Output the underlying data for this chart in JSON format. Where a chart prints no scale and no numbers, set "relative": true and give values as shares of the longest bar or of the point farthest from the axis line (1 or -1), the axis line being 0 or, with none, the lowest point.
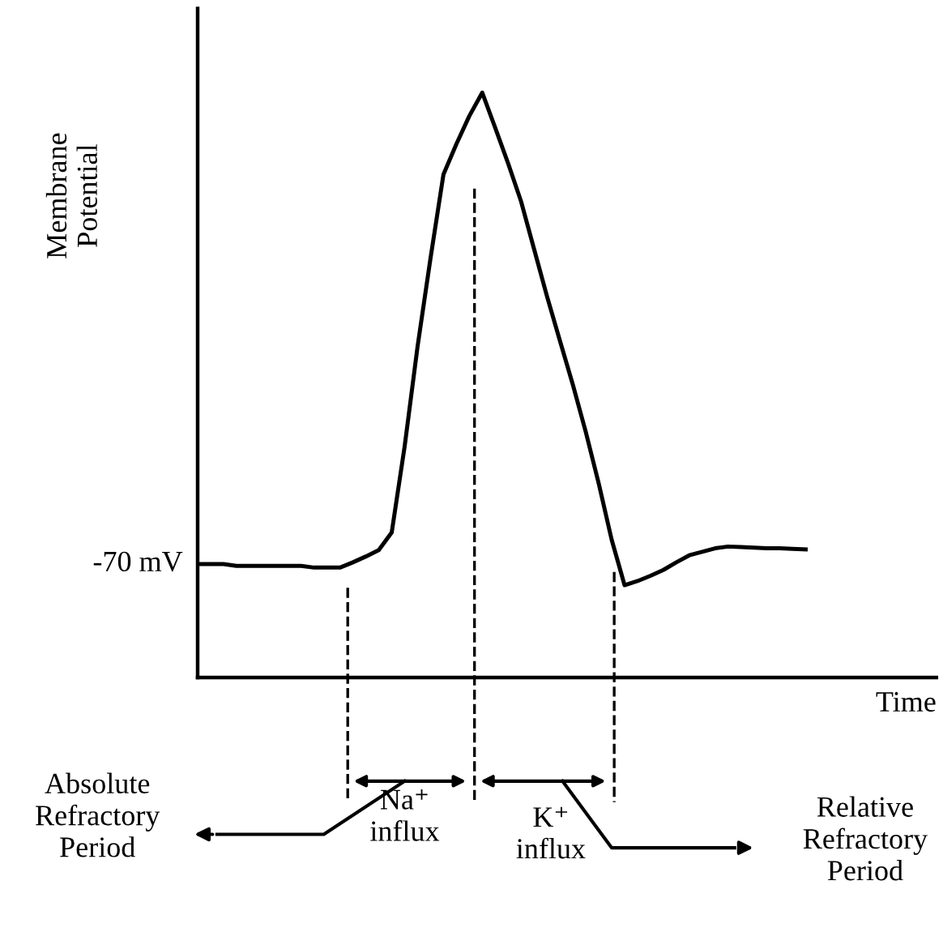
{
  "chart_data": {
    "type": "line",
    "relative": true,
    "xlabel": "Time",
    "ylabel": "Membrane\nPotential",
    "categories": [
      null,
      null,
      null,
      null,
      null,
      null,
      null,
      null,
      null,
      null,
      null,
      null,
      null,
      null,
      null,
      null,
      null,
      null,
      null,
      null,
      null,
      null,
      null,
      null,
      null,
      null,
      null,
      null,
      null,
      null,
      null,
      null,
      null,
      null,
      null,
      null,
      null,
      null,
      null,
      null,
      null,
      null,
      null,
      null,
      null,
      null,
      null,
      null
    ],
    "series": [
      {
        "color": "#000000",
        "values": [
          0.194,
          0.194,
          0.194,
          0.191,
          0.191,
          0.191,
          0.191,
          0.191,
          0.191,
          0.188,
          0.188,
          0.188,
          0.197,
          0.207,
          0.218,
          0.248,
          0.395,
          0.566,
          0.717,
          0.86,
          0.912,
          0.96,
          1,
          0.94,
          0.879,
          0.814,
          0.733,
          0.652,
          0.576,
          0.501,
          0.42,
          0.332,
          0.236,
          0.158,
          0.165,
          0.174,
          0.184,
          0.197,
          0.209,
          0.215,
          0.221,
          0.224,
          0.223,
          0.222,
          0.221,
          0.221,
          0.22,
          0.219
        ]
      }
    ],
    "annotations": [
      "-70 mV",
      "Na⁺\ninflux",
      "K⁺\ninflux",
      "Absolute\nRefractory\nPeriod",
      "Relative\nRefractory\nPeriod"
    ],
    "marker": "none",
    "line_style": "solid"
  }
}
